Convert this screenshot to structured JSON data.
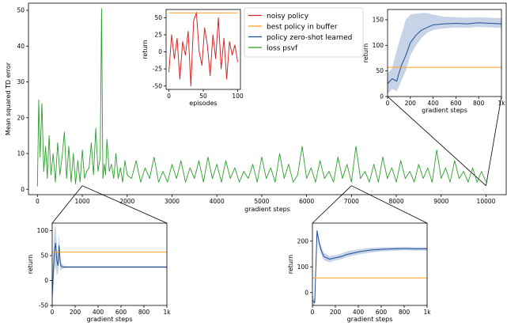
{
  "chart_data": [
    {
      "id": "main",
      "type": "line",
      "xlabel": "gradient steps",
      "ylabel": "Mean squared TD error",
      "xlim": [
        -200,
        10450
      ],
      "ylim": [
        -1.5,
        52
      ],
      "xticks": [
        "0",
        "1000",
        "2000",
        "3000",
        "4000",
        "5000",
        "6000",
        "7000",
        "8000",
        "9000",
        "10000"
      ],
      "yticks": [
        "0",
        "10",
        "20",
        "30",
        "40",
        "50"
      ],
      "series": [
        {
          "name": "loss psvf",
          "color": "#2ca02c",
          "x": [
            0,
            30,
            60,
            100,
            140,
            180,
            220,
            260,
            300,
            350,
            400,
            450,
            500,
            550,
            600,
            650,
            700,
            750,
            800,
            850,
            900,
            950,
            1000,
            1050,
            1100,
            1150,
            1200,
            1250,
            1300,
            1350,
            1400,
            1430,
            1460,
            1490,
            1520,
            1550,
            1600,
            1650,
            1700,
            1750,
            1800,
            1850,
            1900,
            1950,
            2000,
            2100,
            2200,
            2300,
            2400,
            2500,
            2600,
            2700,
            2800,
            2900,
            3000,
            3100,
            3200,
            3300,
            3400,
            3500,
            3600,
            3700,
            3800,
            3900,
            4000,
            4100,
            4200,
            4300,
            4400,
            4500,
            4600,
            4700,
            4800,
            4900,
            5000,
            5100,
            5200,
            5300,
            5400,
            5500,
            5600,
            5700,
            5800,
            5900,
            6000,
            6100,
            6200,
            6300,
            6400,
            6500,
            6600,
            6700,
            6800,
            6900,
            7000,
            7100,
            7200,
            7300,
            7400,
            7500,
            7600,
            7700,
            7800,
            7900,
            8000,
            8100,
            8200,
            8300,
            8400,
            8500,
            8600,
            8700,
            8800,
            8900,
            9000,
            9100,
            9200,
            9300,
            9400,
            9500,
            9600,
            9700,
            9800,
            9900,
            10000
          ],
          "y": [
            0.8,
            25,
            9,
            24,
            5,
            12,
            3,
            15,
            4,
            10,
            2,
            13,
            4,
            9,
            16,
            3,
            12,
            2,
            10,
            1.5,
            8,
            2,
            11,
            3,
            5,
            6,
            13,
            4,
            17,
            5,
            9,
            50.5,
            3,
            7,
            4,
            14,
            5,
            7,
            3,
            10,
            3,
            6,
            2,
            8,
            4,
            3,
            8,
            2,
            6,
            3,
            9,
            2,
            5,
            2,
            7,
            3,
            8,
            2,
            6,
            3,
            8,
            2,
            9,
            3,
            7,
            2,
            8,
            3,
            6,
            2,
            5,
            3,
            7,
            2,
            9,
            3,
            6,
            2,
            10,
            3,
            7,
            2,
            4,
            12,
            3,
            6,
            2,
            8,
            3,
            5,
            2,
            9,
            3,
            7,
            2,
            12,
            3,
            5,
            2,
            7,
            2,
            9,
            3,
            6,
            2,
            8,
            3,
            5,
            2,
            7,
            3,
            6,
            2,
            11,
            3,
            6,
            2,
            8,
            3,
            5,
            2,
            6,
            2,
            5,
            2
          ]
        }
      ]
    },
    {
      "id": "inset-noisy",
      "type": "line",
      "xlabel": "episodes",
      "ylabel": "return",
      "xlim": [
        -4,
        104
      ],
      "ylim": [
        -55,
        62
      ],
      "xticks": [
        "0",
        "50",
        "100"
      ],
      "yticks": [
        "-50",
        "-25",
        "0",
        "25",
        "50"
      ],
      "series": [
        {
          "name": "noisy policy",
          "color": "#d62728",
          "x": [
            0,
            4,
            8,
            12,
            16,
            20,
            24,
            28,
            32,
            36,
            40,
            44,
            48,
            52,
            56,
            60,
            64,
            68,
            72,
            76,
            80,
            84,
            88,
            92,
            96,
            100
          ],
          "y": [
            -30,
            25,
            -10,
            20,
            -40,
            15,
            -5,
            30,
            -50,
            45,
            58,
            0,
            -20,
            35,
            10,
            -35,
            25,
            -10,
            50,
            -25,
            20,
            -40,
            15,
            -5,
            10,
            -15
          ]
        },
        {
          "name": "best policy in buffer",
          "color": "#ff9f1c",
          "x": [
            0,
            100
          ],
          "y": [
            57,
            57
          ]
        }
      ]
    },
    {
      "id": "inset-10000",
      "type": "line",
      "xlabel": "gradient steps",
      "ylabel": "return",
      "xlim": [
        0,
        1000
      ],
      "ylim": [
        0,
        170
      ],
      "xticks": [
        "0",
        "200",
        "400",
        "600",
        "800",
        "1k"
      ],
      "yticks": [
        "0",
        "50",
        "100",
        "150"
      ],
      "series": [
        {
          "name": "policy zero-shot learned",
          "color": "#1f4e9a",
          "x": [
            0,
            40,
            80,
            120,
            160,
            200,
            250,
            300,
            350,
            400,
            450,
            500,
            600,
            700,
            800,
            900,
            1000
          ],
          "y": [
            25,
            35,
            30,
            60,
            80,
            105,
            120,
            130,
            135,
            140,
            141,
            142,
            143,
            142,
            144,
            143,
            142
          ],
          "band": {
            "lower": [
              5,
              15,
              10,
              30,
              50,
              80,
              100,
              115,
              125,
              130,
              132,
              133,
              135,
              134,
              136,
              135,
              134
            ],
            "upper": [
              45,
              55,
              90,
              120,
              150,
              160,
              162,
              163,
              163,
              160,
              158,
              156,
              155,
              154,
              155,
              154,
              153
            ]
          }
        },
        {
          "name": "best policy in buffer",
          "color": "#ff9f1c",
          "x": [
            0,
            1000
          ],
          "y": [
            57,
            57
          ]
        }
      ]
    },
    {
      "id": "inset-1000",
      "type": "line",
      "xlabel": "gradient steps",
      "ylabel": "return",
      "xlim": [
        0,
        1000
      ],
      "ylim": [
        -50,
        115
      ],
      "xticks": [
        "0",
        "200",
        "400",
        "600",
        "800",
        "1k"
      ],
      "yticks": [
        "-50",
        "0",
        "50",
        "100"
      ],
      "series": [
        {
          "name": "policy zero-shot learned",
          "color": "#1f4e9a",
          "x": [
            0,
            10,
            20,
            30,
            40,
            50,
            60,
            70,
            80,
            100,
            150,
            200,
            300,
            400,
            500,
            600,
            700,
            800,
            900,
            1000
          ],
          "y": [
            -30,
            20,
            60,
            75,
            40,
            30,
            70,
            35,
            28,
            27,
            27,
            27,
            27,
            27,
            27,
            27,
            27,
            27,
            27,
            27
          ],
          "band": {
            "lower": [
              -50,
              -20,
              20,
              30,
              10,
              15,
              40,
              20,
              22,
              24,
              25,
              25,
              25,
              25,
              25,
              25,
              25,
              25,
              25,
              25
            ],
            "upper": [
              0,
              60,
              105,
              112,
              70,
              50,
              95,
              50,
              34,
              30,
              29,
              29,
              29,
              29,
              29,
              29,
              29,
              29,
              29,
              29
            ]
          }
        },
        {
          "name": "best policy in buffer",
          "color": "#ff9f1c",
          "x": [
            0,
            1000
          ],
          "y": [
            57,
            57
          ]
        }
      ]
    },
    {
      "id": "inset-7000",
      "type": "line",
      "xlabel": "gradient steps",
      "ylabel": "return",
      "xlim": [
        0,
        1000
      ],
      "ylim": [
        -50,
        270
      ],
      "xticks": [
        "0",
        "200",
        "400",
        "600",
        "800",
        "1k"
      ],
      "yticks": [
        "0",
        "100",
        "200"
      ],
      "series": [
        {
          "name": "policy zero-shot learned",
          "color": "#1f4e9a",
          "x": [
            0,
            20,
            40,
            60,
            80,
            100,
            150,
            200,
            250,
            300,
            400,
            500,
            600,
            700,
            800,
            900,
            1000
          ],
          "y": [
            -30,
            -40,
            240,
            190,
            160,
            140,
            130,
            135,
            140,
            148,
            158,
            165,
            168,
            170,
            171,
            170,
            170
          ],
          "band": {
            "lower": [
              -50,
              -50,
              225,
              175,
              145,
              125,
              118,
              125,
              130,
              138,
              148,
              155,
              160,
              162,
              164,
              163,
              163
            ],
            "upper": [
              -10,
              -30,
              255,
              205,
              175,
              155,
              142,
              145,
              152,
              160,
              168,
              174,
              176,
              177,
              178,
              177,
              177
            ]
          }
        },
        {
          "name": "best policy in buffer",
          "color": "#ff9f1c",
          "x": [
            0,
            1000
          ],
          "y": [
            57,
            57
          ]
        }
      ]
    }
  ],
  "legend": {
    "placement": "top-center",
    "entries": [
      {
        "label": "noisy policy",
        "color": "#d62728"
      },
      {
        "label": "best policy in buffer",
        "color": "#ff9f1c"
      },
      {
        "label": "policy zero-shot learned",
        "color": "#1f4e9a"
      },
      {
        "label": "loss psvf",
        "color": "#2ca02c"
      }
    ]
  }
}
